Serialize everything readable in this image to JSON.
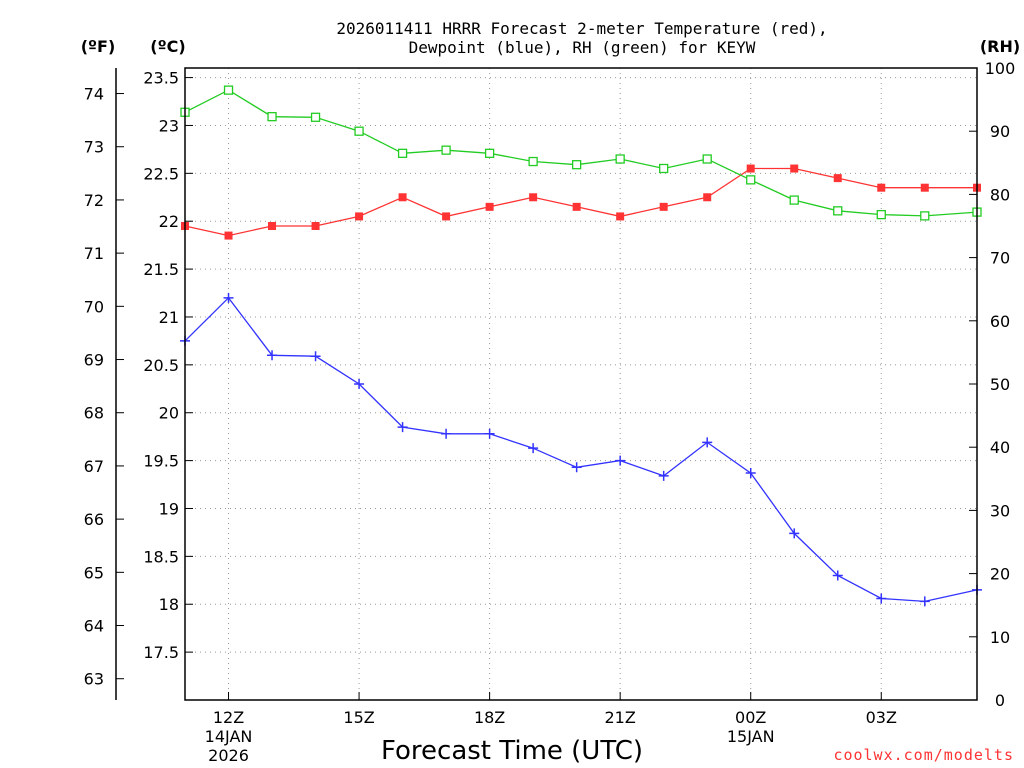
{
  "chart_data": {
    "type": "line",
    "title_line1": "2026011411 HRRR Forecast 2-meter Temperature (red),",
    "title_line2": "Dewpoint (blue), RH (green) for KEYW",
    "xlabel": "Forecast Time (UTC)",
    "credit": "coolwx.com/modelts",
    "unit_f": "(ºF)",
    "unit_c": "(ºC)",
    "unit_rh": "(RH)",
    "celsius_axis": {
      "min": 17.0,
      "max": 23.6,
      "ticks": [
        "17.5",
        "18",
        "18.5",
        "19",
        "19.5",
        "20",
        "20.5",
        "21",
        "21.5",
        "22",
        "22.5",
        "23",
        "23.5"
      ]
    },
    "fahrenheit_axis": {
      "ticks": [
        "63",
        "64",
        "65",
        "66",
        "67",
        "68",
        "69",
        "70",
        "71",
        "72",
        "73",
        "74"
      ]
    },
    "rh_axis": {
      "min": 0,
      "max": 100,
      "ticks": [
        "0",
        "10",
        "20",
        "30",
        "40",
        "50",
        "60",
        "70",
        "80",
        "90",
        "100"
      ]
    },
    "x_axis": {
      "min": 11,
      "max": 29.2,
      "ticks": [
        {
          "hour": 12,
          "label": "12Z",
          "sub1": "14JAN",
          "sub2": "2026"
        },
        {
          "hour": 15,
          "label": "15Z",
          "sub1": "",
          "sub2": ""
        },
        {
          "hour": 18,
          "label": "18Z",
          "sub1": "",
          "sub2": ""
        },
        {
          "hour": 21,
          "label": "21Z",
          "sub1": "",
          "sub2": ""
        },
        {
          "hour": 24,
          "label": "00Z",
          "sub1": "15JAN",
          "sub2": ""
        },
        {
          "hour": 27,
          "label": "03Z",
          "sub1": "",
          "sub2": ""
        }
      ]
    },
    "hours": [
      11,
      12,
      13,
      14,
      15,
      16,
      17,
      18,
      19,
      20,
      21,
      22,
      23,
      24,
      25,
      26,
      27,
      28,
      29.2
    ],
    "series": [
      {
        "name": "2-meter Temperature (°C)",
        "color": "#ff3333",
        "marker": "filled-square",
        "values": [
          21.95,
          21.85,
          21.95,
          21.95,
          22.05,
          22.25,
          22.05,
          22.15,
          22.25,
          22.15,
          22.05,
          22.15,
          22.25,
          22.55,
          22.55,
          22.45,
          22.35,
          22.35,
          22.35
        ]
      },
      {
        "name": "Dewpoint (°C)",
        "color": "#3333ff",
        "marker": "plus",
        "values": [
          20.75,
          21.2,
          20.6,
          20.59,
          20.3,
          19.85,
          19.78,
          19.78,
          19.63,
          19.43,
          19.5,
          19.34,
          19.69,
          19.37,
          18.74,
          18.3,
          18.06,
          18.03,
          18.15
        ]
      },
      {
        "name": "RH (%)",
        "color": "#22cc22",
        "marker": "open-square",
        "values": [
          93,
          96.5,
          92.3,
          92.2,
          90,
          86.5,
          87,
          86.5,
          85.2,
          84.7,
          85.6,
          84.1,
          85.6,
          82.3,
          79.1,
          77.4,
          76.8,
          76.6,
          77.2
        ]
      }
    ]
  }
}
